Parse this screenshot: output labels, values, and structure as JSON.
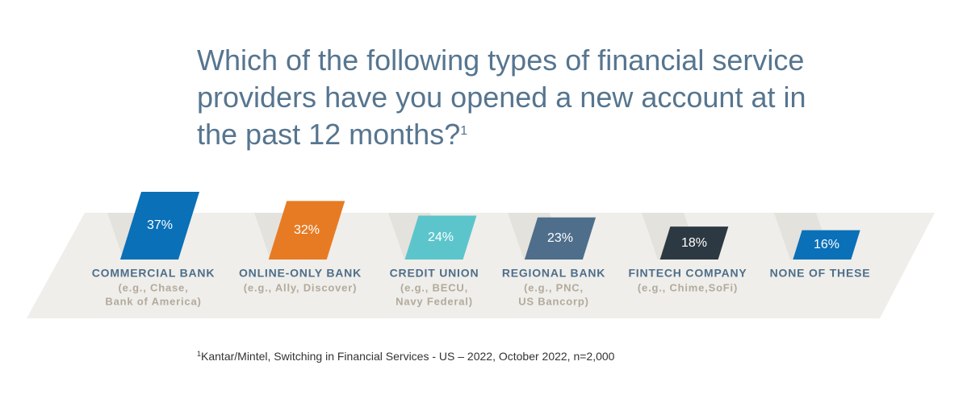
{
  "chart_data": {
    "type": "bar",
    "title": "Which of the following types of financial service providers have you opened a new account at in the past 12 months?",
    "title_note_marker": "1",
    "categories": [
      "COMMERCIAL BANK",
      "ONLINE-ONLY BANK",
      "CREDIT UNION",
      "REGIONAL BANK",
      "FINTECH COMPANY",
      "NONE OF THESE"
    ],
    "examples": [
      [
        "(e.g., Chase,",
        "Bank of America)"
      ],
      [
        "(e.g., Ally, Discover)"
      ],
      [
        "(e.g., BECU,",
        "Navy Federal)"
      ],
      [
        "(e.g., PNC,",
        "US Bancorp)"
      ],
      [
        "(e.g., Chime,SoFi)"
      ],
      []
    ],
    "values": [
      37,
      32,
      24,
      23,
      18,
      16
    ],
    "value_labels": [
      "37%",
      "32%",
      "24%",
      "23%",
      "18%",
      "16%"
    ],
    "colors": [
      "#0a70b8",
      "#e77b24",
      "#5cc5cc",
      "#4e6e8b",
      "#2d3942",
      "#0a70b8"
    ],
    "footnote": {
      "marker": "1",
      "text": "Kantar/Mintel, Switching in Financial Services - US – 2022, October 2022, n=2,000"
    }
  }
}
